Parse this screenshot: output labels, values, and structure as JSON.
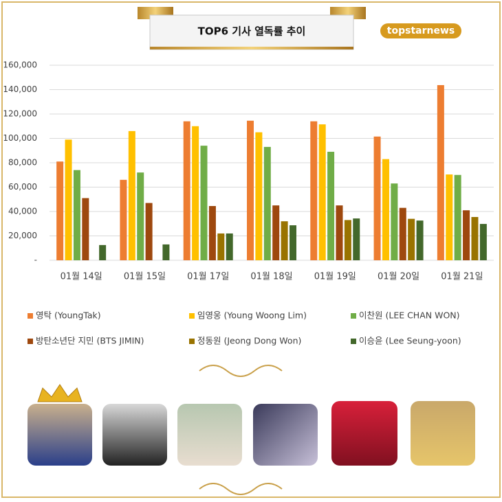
{
  "chart_data": {
    "type": "bar",
    "title": "TOP6 기사 열독률 추이",
    "brand": "topstarnews",
    "categories": [
      "01월 14일",
      "01월 15일",
      "01월 17일",
      "01월 18일",
      "01월 19일",
      "01월 20일",
      "01월 21일"
    ],
    "series": [
      {
        "name": "영탁 (YoungTak)",
        "color": "#ed7d31",
        "values": [
          81000,
          66000,
          114000,
          114500,
          114000,
          101500,
          143700
        ]
      },
      {
        "name": "임영웅 (Young Woong Lim)",
        "color": "#ffc000",
        "values": [
          99000,
          106000,
          110000,
          105000,
          111500,
          83000,
          70400
        ]
      },
      {
        "name": "이찬원 (LEE CHAN WON)",
        "color": "#70ad47",
        "values": [
          74000,
          72000,
          94000,
          93000,
          89000,
          63000,
          70000
        ]
      },
      {
        "name": "방탄소년단 지민 (BTS JIMIN)",
        "color": "#9e480e",
        "values": [
          51000,
          47000,
          44500,
          45000,
          45000,
          43000,
          41000
        ]
      },
      {
        "name": "정동원 (Jeong Dong Won)",
        "color": "#997300",
        "values": [
          null,
          null,
          22000,
          32000,
          33000,
          34000,
          35500
        ]
      },
      {
        "name": "이승윤 (Lee Seung-yoon)",
        "color": "#43682b",
        "values": [
          12500,
          13000,
          22000,
          28700,
          34300,
          32600,
          29800
        ]
      }
    ],
    "ylim": [
      0,
      160000
    ],
    "yticks": [
      {
        "value": 0,
        "label": "-"
      },
      {
        "value": 20000,
        "label": "20,000"
      },
      {
        "value": 40000,
        "label": "40,000"
      },
      {
        "value": 60000,
        "label": "60,000"
      },
      {
        "value": 80000,
        "label": "80,000"
      },
      {
        "value": 100000,
        "label": "100,000"
      },
      {
        "value": 120000,
        "label": "120,000"
      },
      {
        "value": 140000,
        "label": "140,000"
      },
      {
        "value": 160000,
        "label": "160,000"
      }
    ],
    "grid": true
  }
}
